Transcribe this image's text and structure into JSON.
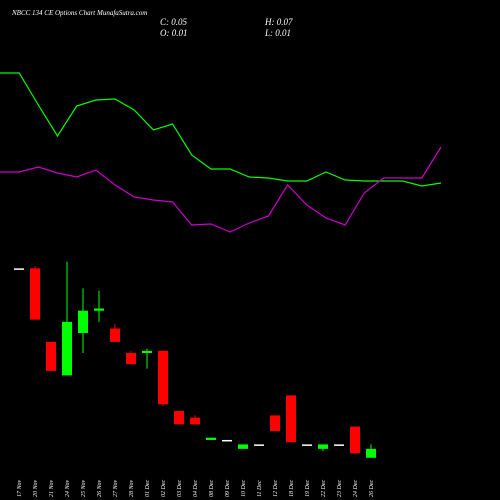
{
  "title": "NBCC 134 CE Options Chart MunafaSutra.com",
  "summary": [
    "C: 0.05",
    "H: 0.07",
    "O: 0.01",
    "L: 0.01"
  ],
  "chart_data": [
    {
      "type": "line",
      "ylim": [
        0,
        200
      ],
      "series": [
        {
          "name": "green-line",
          "color": "#00ff00",
          "values": [
            177,
            177,
            145,
            114,
            144,
            150,
            151,
            140,
            120,
            126,
            95,
            81,
            81,
            73,
            72,
            69,
            69,
            78,
            70,
            69,
            69,
            69,
            64,
            67
          ]
        },
        {
          "name": "magenta-line",
          "color": "#cc00cc",
          "values": [
            78,
            78,
            83,
            77,
            73,
            80,
            65,
            53,
            50,
            48,
            25,
            26,
            18,
            27,
            34,
            65,
            45,
            32,
            25,
            57,
            72,
            72,
            72,
            103
          ]
        }
      ]
    },
    {
      "type": "candlestick",
      "up_color": "#00ff00",
      "down_color": "#ff0000",
      "doji_color": "#ffffff",
      "ylim": [
        0,
        0.92
      ],
      "categories": [
        "17 Nov",
        "20 Nov",
        "21 Nov",
        "24 Nov",
        "25 Nov",
        "26 Nov",
        "27 Nov",
        "28 Nov",
        "01 Dec",
        "02 Dec",
        "03 Dec",
        "04 Dec",
        "08 Dec",
        "09 Dec",
        "10 Dec",
        "11 Dec",
        "12 Dec",
        "18 Dec",
        "19 Dec",
        "22 Dec",
        "23 Dec",
        "24 Dec",
        "26 Dec"
      ],
      "open": [
        0.86,
        0.86,
        0.53,
        0.38,
        0.57,
        0.67,
        0.59,
        0.48,
        0.48,
        0.49,
        0.22,
        0.19,
        0.09,
        0.09,
        0.05,
        0.07,
        0.2,
        0.29,
        0.07,
        0.05,
        0.07,
        0.15,
        0.01
      ],
      "high": [
        0.86,
        0.87,
        0.53,
        0.89,
        0.77,
        0.76,
        0.61,
        0.49,
        0.5,
        0.49,
        0.22,
        0.2,
        0.1,
        0.09,
        0.07,
        0.07,
        0.2,
        0.29,
        0.07,
        0.07,
        0.07,
        0.15,
        0.07
      ],
      "low": [
        0.86,
        0.63,
        0.4,
        0.38,
        0.48,
        0.62,
        0.53,
        0.43,
        0.41,
        0.24,
        0.16,
        0.16,
        0.09,
        0.09,
        0.05,
        0.07,
        0.13,
        0.08,
        0.07,
        0.04,
        0.07,
        0.03,
        0.01
      ],
      "close": [
        0.86,
        0.63,
        0.4,
        0.62,
        0.67,
        0.68,
        0.53,
        0.43,
        0.49,
        0.25,
        0.16,
        0.16,
        0.1,
        0.09,
        0.07,
        0.07,
        0.13,
        0.08,
        0.07,
        0.07,
        0.07,
        0.03,
        0.05
      ]
    }
  ]
}
